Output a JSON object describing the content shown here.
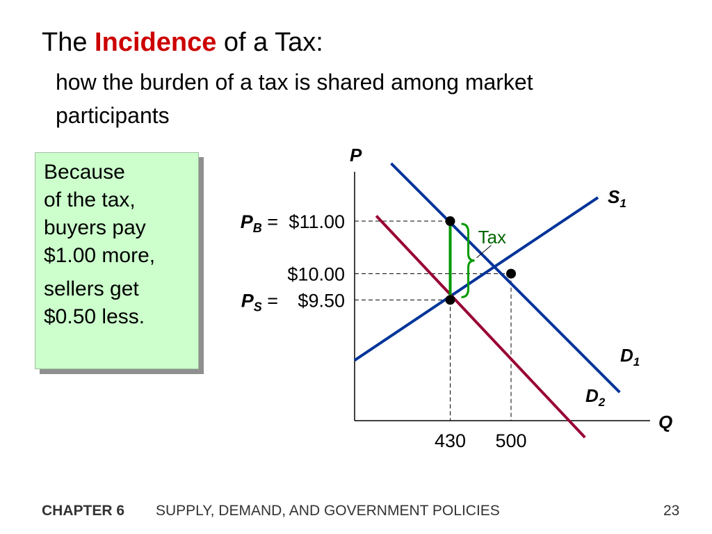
{
  "slide": {
    "title_pre": "The ",
    "title_highlight": "Incidence",
    "title_post": " of a Tax:",
    "subtitle": "how the burden of a tax is shared among market participants",
    "callout": {
      "line1": "Because",
      "line2": "of the tax,",
      "line3": "buyers pay",
      "line4": "$1.00 more,",
      "line5": "sellers get",
      "line6": "$0.50 less."
    },
    "footer": {
      "chapter": "CHAPTER 6",
      "book": "SUPPLY, DEMAND, AND GOVERNMENT POLICIES",
      "page": "23"
    }
  },
  "colors": {
    "supply": "#003399",
    "demand_original": "#003399",
    "demand_shifted": "#990033",
    "tax_bracket": "#009900",
    "tax_label": "#006600",
    "callout_bg": "#ccffcc",
    "title_highlight": "#cc0000"
  },
  "chart_data": {
    "type": "line",
    "axes": {
      "y_label": "P",
      "x_label": "Q"
    },
    "x_domain": [
      320,
      660
    ],
    "y_domain": [
      7.2,
      12.1
    ],
    "series": [
      {
        "key": "S1",
        "label_main": "S",
        "label_sub": "1",
        "points": [
          [
            320,
            8.35
          ],
          [
            600,
            11.45
          ]
        ]
      },
      {
        "key": "D1",
        "label_main": "D",
        "label_sub": "1",
        "points": [
          [
            362,
            12.1
          ],
          [
            625,
            7.74
          ]
        ]
      },
      {
        "key": "D2",
        "label_main": "D",
        "label_sub": "2",
        "points": [
          [
            345,
            11.1
          ],
          [
            585,
            6.88
          ]
        ]
      }
    ],
    "equilibrium_points": [
      {
        "q": 430,
        "p": 11.0
      },
      {
        "q": 500,
        "p": 10.0
      },
      {
        "q": 430,
        "p": 9.5
      }
    ],
    "price_labels": [
      {
        "p": 11.0,
        "var": "P",
        "sub": "B",
        "value": "$11.00"
      },
      {
        "p": 10.0,
        "var": "",
        "sub": "",
        "value": "$10.00"
      },
      {
        "p": 9.5,
        "var": "P",
        "sub": "S",
        "value": "$9.50"
      }
    ],
    "quantity_ticks": [
      {
        "q": 430,
        "label": "430"
      },
      {
        "q": 500,
        "label": "500"
      }
    ],
    "tax": {
      "label": "Tax",
      "q": 430,
      "p_buyers": 11.0,
      "p_sellers": 9.5
    }
  }
}
